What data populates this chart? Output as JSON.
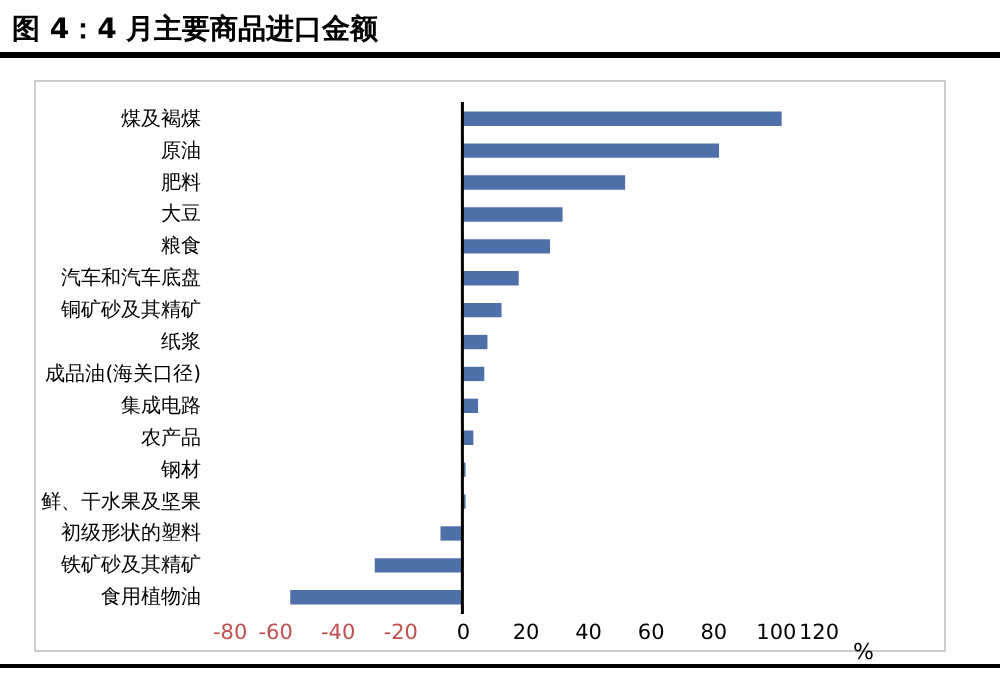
{
  "chart_data": {
    "type": "bar",
    "orientation": "horizontal",
    "title": "图 4：4 月主要商品进口金额",
    "xlabel": "%",
    "categories": [
      "煤及褐煤",
      "原油",
      "肥料",
      "大豆",
      "粮食",
      "汽车和汽车底盘",
      "铜矿砂及其精矿",
      "纸浆",
      "成品油(海关口径)",
      "集成电路",
      "农产品",
      "钢材",
      "鲜、干水果及坚果",
      "初级形状的塑料",
      "铁矿砂及其精矿",
      "食用植物油"
    ],
    "values": [
      102,
      82,
      52,
      32,
      28,
      18,
      12.5,
      8,
      7,
      5,
      3.5,
      1,
      1,
      -7,
      -28,
      -55
    ],
    "color": "#4f6fa8",
    "xlim": [
      -80,
      120
    ],
    "xticks": [
      -80,
      -60,
      -40,
      -20,
      0,
      20,
      40,
      60,
      80,
      100,
      120
    ],
    "grid": false,
    "ref_lines": [
      {
        "axis": "x",
        "value": 0,
        "color": "#000000"
      }
    ]
  }
}
